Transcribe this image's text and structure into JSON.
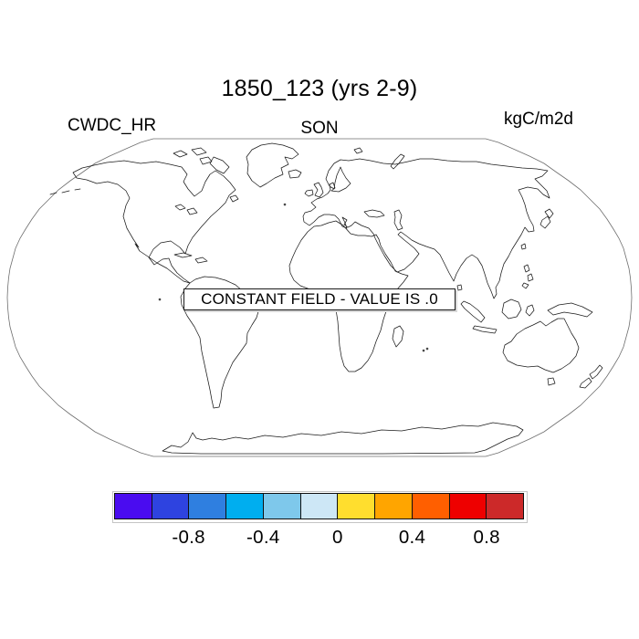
{
  "header": {
    "title": "1850_123 (yrs 2-9)",
    "left_label": "CWDC_HR",
    "center_label": "SON",
    "right_label": "kgC/m2d"
  },
  "map": {
    "annotation": "CONSTANT FIELD - VALUE IS .0"
  },
  "colorbar": {
    "colors": [
      "#4A0CF0",
      "#2E43E0",
      "#2F7FE0",
      "#00AEEF",
      "#7EC8EB",
      "#CDE7F6",
      "#FFDE2E",
      "#FFA500",
      "#FF5F00",
      "#EE0000",
      "#CC2929"
    ],
    "tick_labels": [
      "-0.8",
      "-0.4",
      "0",
      "0.4",
      "0.8"
    ]
  },
  "chart_data": {
    "type": "map",
    "title": "1850_123 (yrs 2-9)",
    "variable": "CWDC_HR",
    "season": "SON",
    "units": "kgC/m2d",
    "annotation": "CONSTANT FIELD - VALUE IS .0",
    "projection": "robinson-world-outline",
    "field_constant_value": 0.0,
    "colorbar": {
      "n_segments": 11,
      "tick_labels": [
        "-0.8",
        "-0.4",
        "0",
        "0.4",
        "0.8"
      ],
      "segment_colors": [
        "#4A0CF0",
        "#2E43E0",
        "#2F7FE0",
        "#00AEEF",
        "#7EC8EB",
        "#CDE7F6",
        "#FFDE2E",
        "#FFA500",
        "#FF5F00",
        "#EE0000",
        "#CC2929"
      ]
    }
  }
}
